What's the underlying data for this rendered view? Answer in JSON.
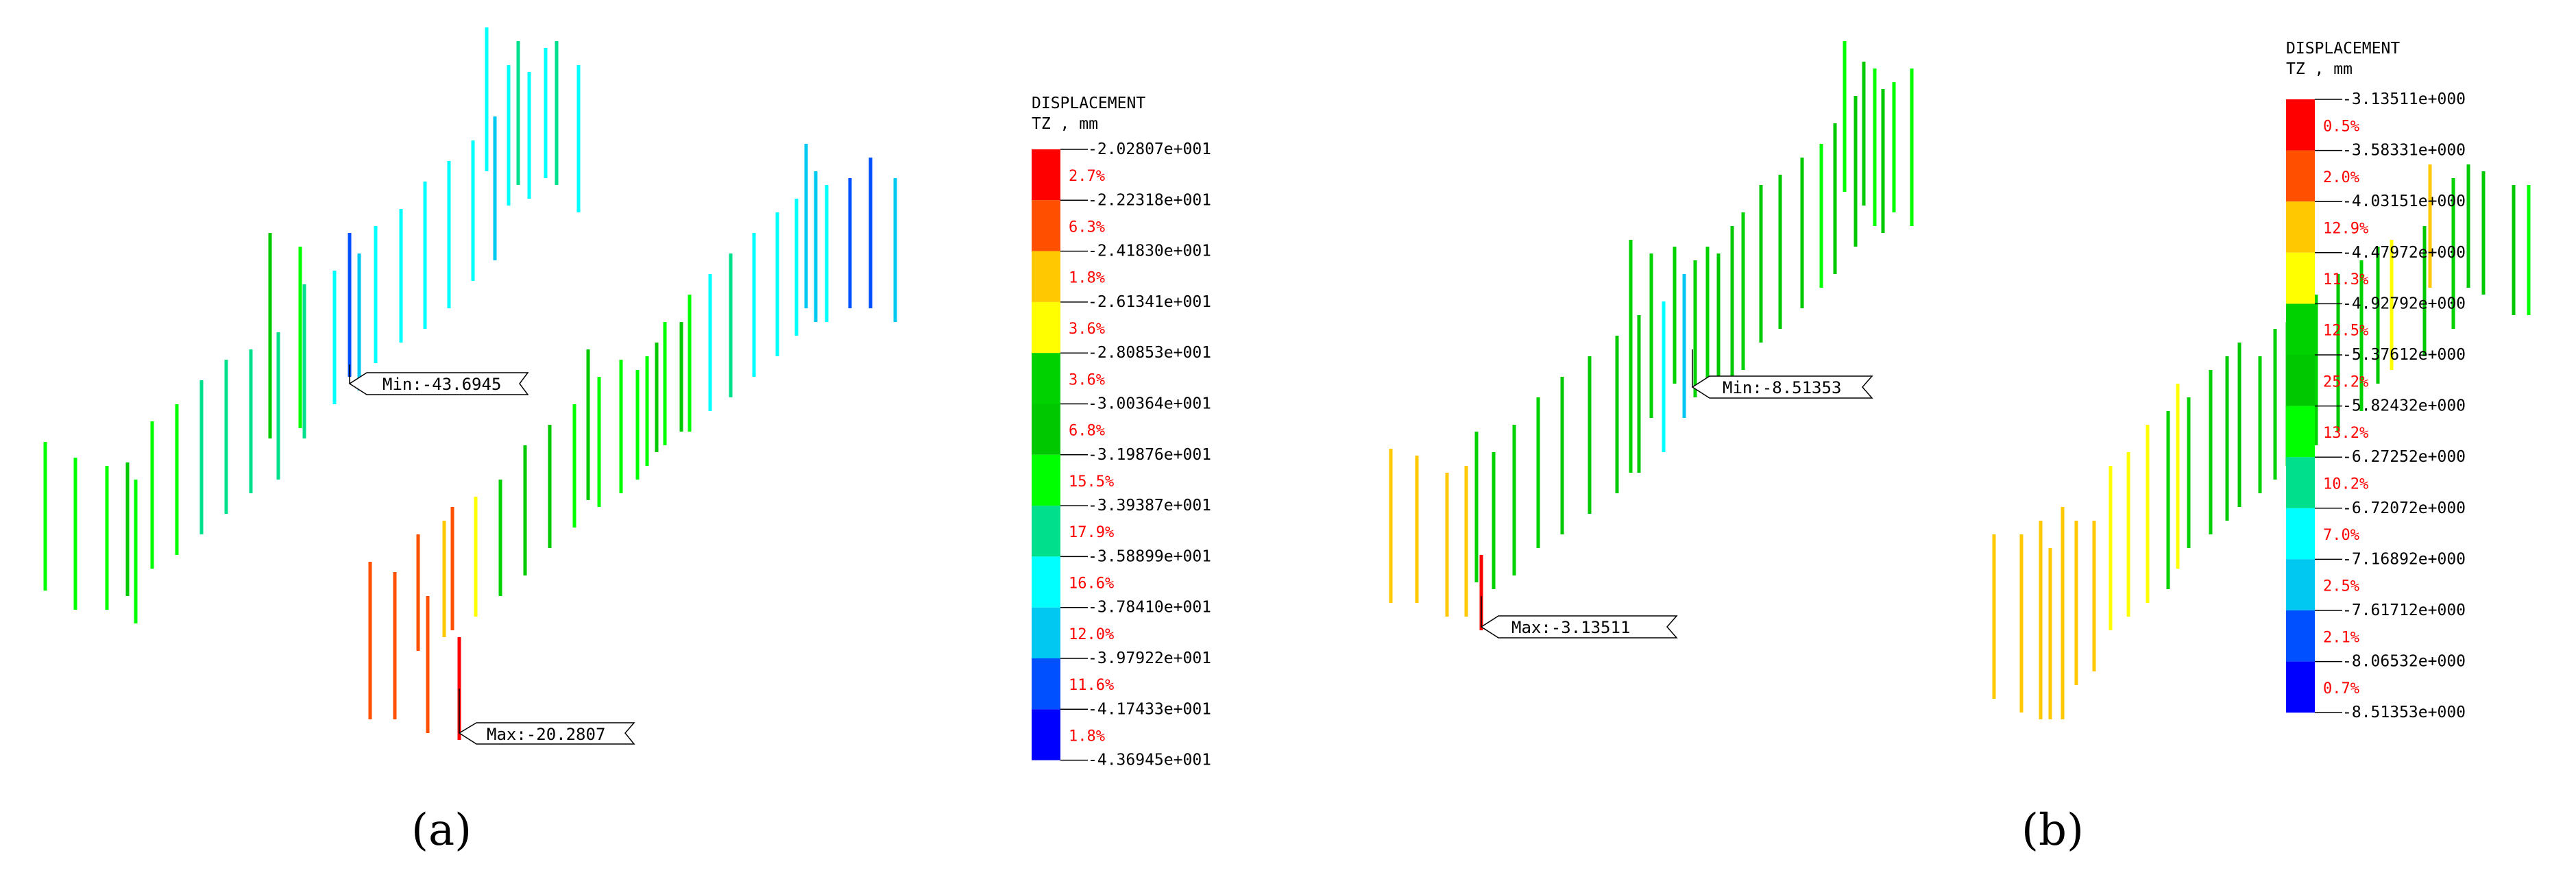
{
  "panels": [
    {
      "caption": "(a)",
      "legend": {
        "title_line1": "DISPLACEMENT",
        "title_line2": "TZ , mm",
        "colors": [
          "#ff0000",
          "#ff5000",
          "#ffc800",
          "#ffff00",
          "#00d200",
          "#00c800",
          "#00ff00",
          "#00e08c",
          "#00ffff",
          "#00c8f0",
          "#0050ff",
          "#0000ff"
        ],
        "levels": [
          "-2.02807e+001",
          "-2.22318e+001",
          "-2.41830e+001",
          "-2.61341e+001",
          "-2.80853e+001",
          "-3.00364e+001",
          "-3.19876e+001",
          "-3.39387e+001",
          "-3.58899e+001",
          "-3.78410e+001",
          "-3.97922e+001",
          "-4.17433e+001",
          "-4.36945e+001"
        ],
        "percents": [
          "2.7%",
          "6.3%",
          "1.8%",
          "3.6%",
          "3.6%",
          "6.8%",
          "15.5%",
          "17.9%",
          "16.6%",
          "12.0%",
          "11.6%",
          "1.8%"
        ]
      },
      "min_label": "Min:-43.6945",
      "max_label": "Max:-20.2807"
    },
    {
      "caption": "(b)",
      "legend": {
        "title_line1": "DISPLACEMENT",
        "title_line2": "TZ , mm",
        "colors": [
          "#ff0000",
          "#ff5000",
          "#ffc800",
          "#ffff00",
          "#00d200",
          "#00c800",
          "#00ff00",
          "#00e08c",
          "#00ffff",
          "#00c8f0",
          "#0050ff",
          "#0000ff"
        ],
        "levels": [
          "-3.13511e+000",
          "-3.58331e+000",
          "-4.03151e+000",
          "-4.47972e+000",
          "-4.92792e+000",
          "-5.37612e+000",
          "-5.82432e+000",
          "-6.27252e+000",
          "-6.72072e+000",
          "-7.16892e+000",
          "-7.61712e+000",
          "-8.06532e+000",
          "-8.51353e+000"
        ],
        "percents": [
          "0.5%",
          "2.0%",
          "12.9%",
          "11.3%",
          "12.5%",
          "25.2%",
          "13.2%",
          "10.2%",
          "7.0%",
          "2.5%",
          "2.1%",
          "0.7%"
        ]
      },
      "min_label": "Min:-8.51353",
      "max_label": "Max:-3.13511"
    }
  ]
}
